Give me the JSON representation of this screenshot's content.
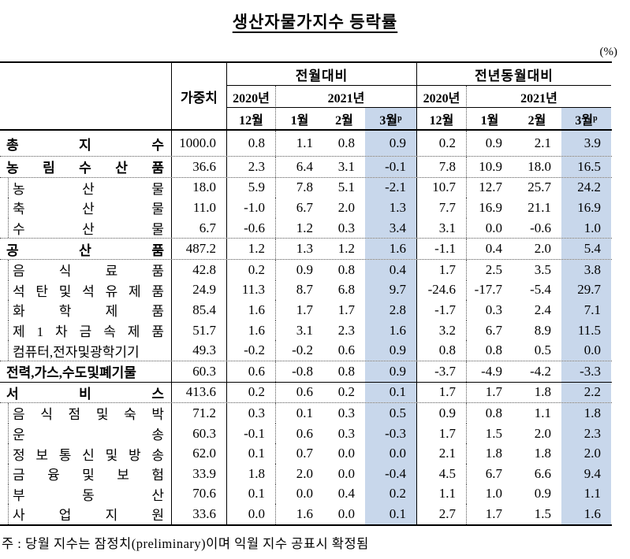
{
  "page": {
    "title": "생산자물가지수  등락률",
    "unit": "(%)",
    "note": "주 : 당월 지수는 잠정치(preliminary)이며 익월 지수 공표시 확정됨"
  },
  "colors": {
    "highlight": "#c8d7eb",
    "border": "#000000",
    "dotted_border": "#555555"
  },
  "table": {
    "weight_header": "가중치",
    "blocks": [
      {
        "title": "전월대비",
        "years": [
          {
            "label": "2020년",
            "span": 1
          },
          {
            "label": "2021년",
            "span": 3
          }
        ],
        "months": [
          {
            "text": "12월"
          },
          {
            "text": "1월"
          },
          {
            "text": "2월"
          },
          {
            "text": "3월",
            "sup": "p",
            "highlight": true
          }
        ]
      },
      {
        "title": "전년동월대비",
        "years": [
          {
            "label": "2020년",
            "span": 1
          },
          {
            "label": "2021년",
            "span": 3
          }
        ],
        "months": [
          {
            "text": "12월"
          },
          {
            "text": "1월"
          },
          {
            "text": "2월"
          },
          {
            "text": "3월",
            "sup": "p",
            "highlight": true
          }
        ]
      }
    ],
    "rows": [
      {
        "label": "총 지 수",
        "bold": true,
        "boxed": false,
        "tall": true,
        "sep": "dotted",
        "weight": "1000.0",
        "values": [
          "0.8",
          "1.1",
          "0.8",
          "0.9",
          "0.2",
          "0.9",
          "2.1",
          "3.9"
        ]
      },
      {
        "label": "농 림 수 산 품",
        "bold": true,
        "boxed": false,
        "sep": "dotted",
        "weight": "36.6",
        "values": [
          "2.3",
          "6.4",
          "3.1",
          "-0.1",
          "7.8",
          "10.9",
          "18.0",
          "16.5"
        ]
      },
      {
        "label": "농 산 물",
        "bold": false,
        "boxed": true,
        "sep": "none",
        "weight": "18.0",
        "values": [
          "5.9",
          "7.8",
          "5.1",
          "-2.1",
          "10.7",
          "12.7",
          "25.7",
          "24.2"
        ]
      },
      {
        "label": "축 산 물",
        "bold": false,
        "boxed": true,
        "sep": "none",
        "weight": "11.0",
        "values": [
          "-1.0",
          "6.7",
          "2.0",
          "1.3",
          "7.7",
          "16.9",
          "21.1",
          "16.9"
        ]
      },
      {
        "label": "수 산 물",
        "bold": false,
        "boxed": true,
        "sep": "dotted",
        "weight": "6.7",
        "values": [
          "-0.6",
          "1.2",
          "0.3",
          "3.4",
          "3.1",
          "0.0",
          "-0.6",
          "1.0"
        ]
      },
      {
        "label": "공 산 품",
        "bold": true,
        "boxed": false,
        "sep": "dotted",
        "weight": "487.2",
        "values": [
          "1.2",
          "1.3",
          "1.2",
          "1.6",
          "-1.1",
          "0.4",
          "2.0",
          "5.4"
        ]
      },
      {
        "label": "음 식 료 품",
        "bold": false,
        "boxed": true,
        "sep": "none",
        "weight": "42.8",
        "values": [
          "0.2",
          "0.9",
          "0.8",
          "0.4",
          "1.7",
          "2.5",
          "3.5",
          "3.8"
        ]
      },
      {
        "label": "석 탄 및 석 유 제 품",
        "bold": false,
        "boxed": true,
        "sep": "none",
        "weight": "24.9",
        "values": [
          "11.3",
          "8.7",
          "6.8",
          "9.7",
          "-24.6",
          "-17.7",
          "-5.4",
          "29.7"
        ]
      },
      {
        "label": "화 학 제 품",
        "bold": false,
        "boxed": true,
        "sep": "none",
        "weight": "85.4",
        "values": [
          "1.6",
          "1.7",
          "1.7",
          "2.8",
          "-1.7",
          "0.3",
          "2.4",
          "7.1"
        ]
      },
      {
        "label": "제 1 차 금 속 제 품",
        "bold": false,
        "boxed": true,
        "sep": "none",
        "weight": "51.7",
        "values": [
          "1.6",
          "3.1",
          "2.3",
          "1.6",
          "3.2",
          "6.7",
          "8.9",
          "11.5"
        ]
      },
      {
        "label": "컴퓨터,전자및광학기기",
        "bold": false,
        "boxed": true,
        "sep": "dotted",
        "weight": "49.3",
        "values": [
          "-0.2",
          "-0.2",
          "0.6",
          "0.9",
          "0.8",
          "0.8",
          "0.5",
          "0.0"
        ]
      },
      {
        "label": "전력,가스,수도및폐기물",
        "bold": true,
        "boxed": false,
        "sep": "solid",
        "weight": "60.3",
        "values": [
          "0.6",
          "-0.8",
          "0.8",
          "0.9",
          "-3.7",
          "-4.9",
          "-4.2",
          "-3.3"
        ]
      },
      {
        "label": "서 비 스",
        "bold": true,
        "boxed": false,
        "sep": "dotted",
        "weight": "413.6",
        "values": [
          "0.2",
          "0.6",
          "0.2",
          "0.1",
          "1.7",
          "1.7",
          "1.8",
          "2.2"
        ]
      },
      {
        "label": "음 식 점 및 숙 박",
        "bold": false,
        "boxed": true,
        "sep": "none",
        "weight": "71.2",
        "values": [
          "0.3",
          "0.1",
          "0.3",
          "0.5",
          "0.9",
          "0.8",
          "1.1",
          "1.8"
        ]
      },
      {
        "label": "운 송",
        "bold": false,
        "boxed": true,
        "sep": "none",
        "weight": "60.3",
        "values": [
          "-0.1",
          "0.6",
          "0.3",
          "-0.3",
          "1.7",
          "1.5",
          "2.0",
          "2.3"
        ]
      },
      {
        "label": "정 보 통 신 및 방 송",
        "bold": false,
        "boxed": true,
        "sep": "none",
        "weight": "62.0",
        "values": [
          "0.1",
          "0.7",
          "0.0",
          "0.0",
          "2.1",
          "1.8",
          "1.8",
          "2.0"
        ]
      },
      {
        "label": "금 융 및 보 험",
        "bold": false,
        "boxed": true,
        "sep": "none",
        "weight": "33.9",
        "values": [
          "1.8",
          "2.0",
          "0.0",
          "-0.4",
          "4.5",
          "6.7",
          "6.6",
          "9.4"
        ]
      },
      {
        "label": "부 동 산",
        "bold": false,
        "boxed": true,
        "sep": "none",
        "weight": "70.6",
        "values": [
          "0.1",
          "0.0",
          "0.4",
          "0.2",
          "1.1",
          "1.0",
          "0.9",
          "1.1"
        ]
      },
      {
        "label": "사 업 지 원",
        "bold": false,
        "boxed": true,
        "sep": "none",
        "weight": "33.6",
        "values": [
          "0.0",
          "1.6",
          "0.0",
          "0.1",
          "2.7",
          "1.7",
          "1.5",
          "1.6"
        ]
      }
    ]
  }
}
